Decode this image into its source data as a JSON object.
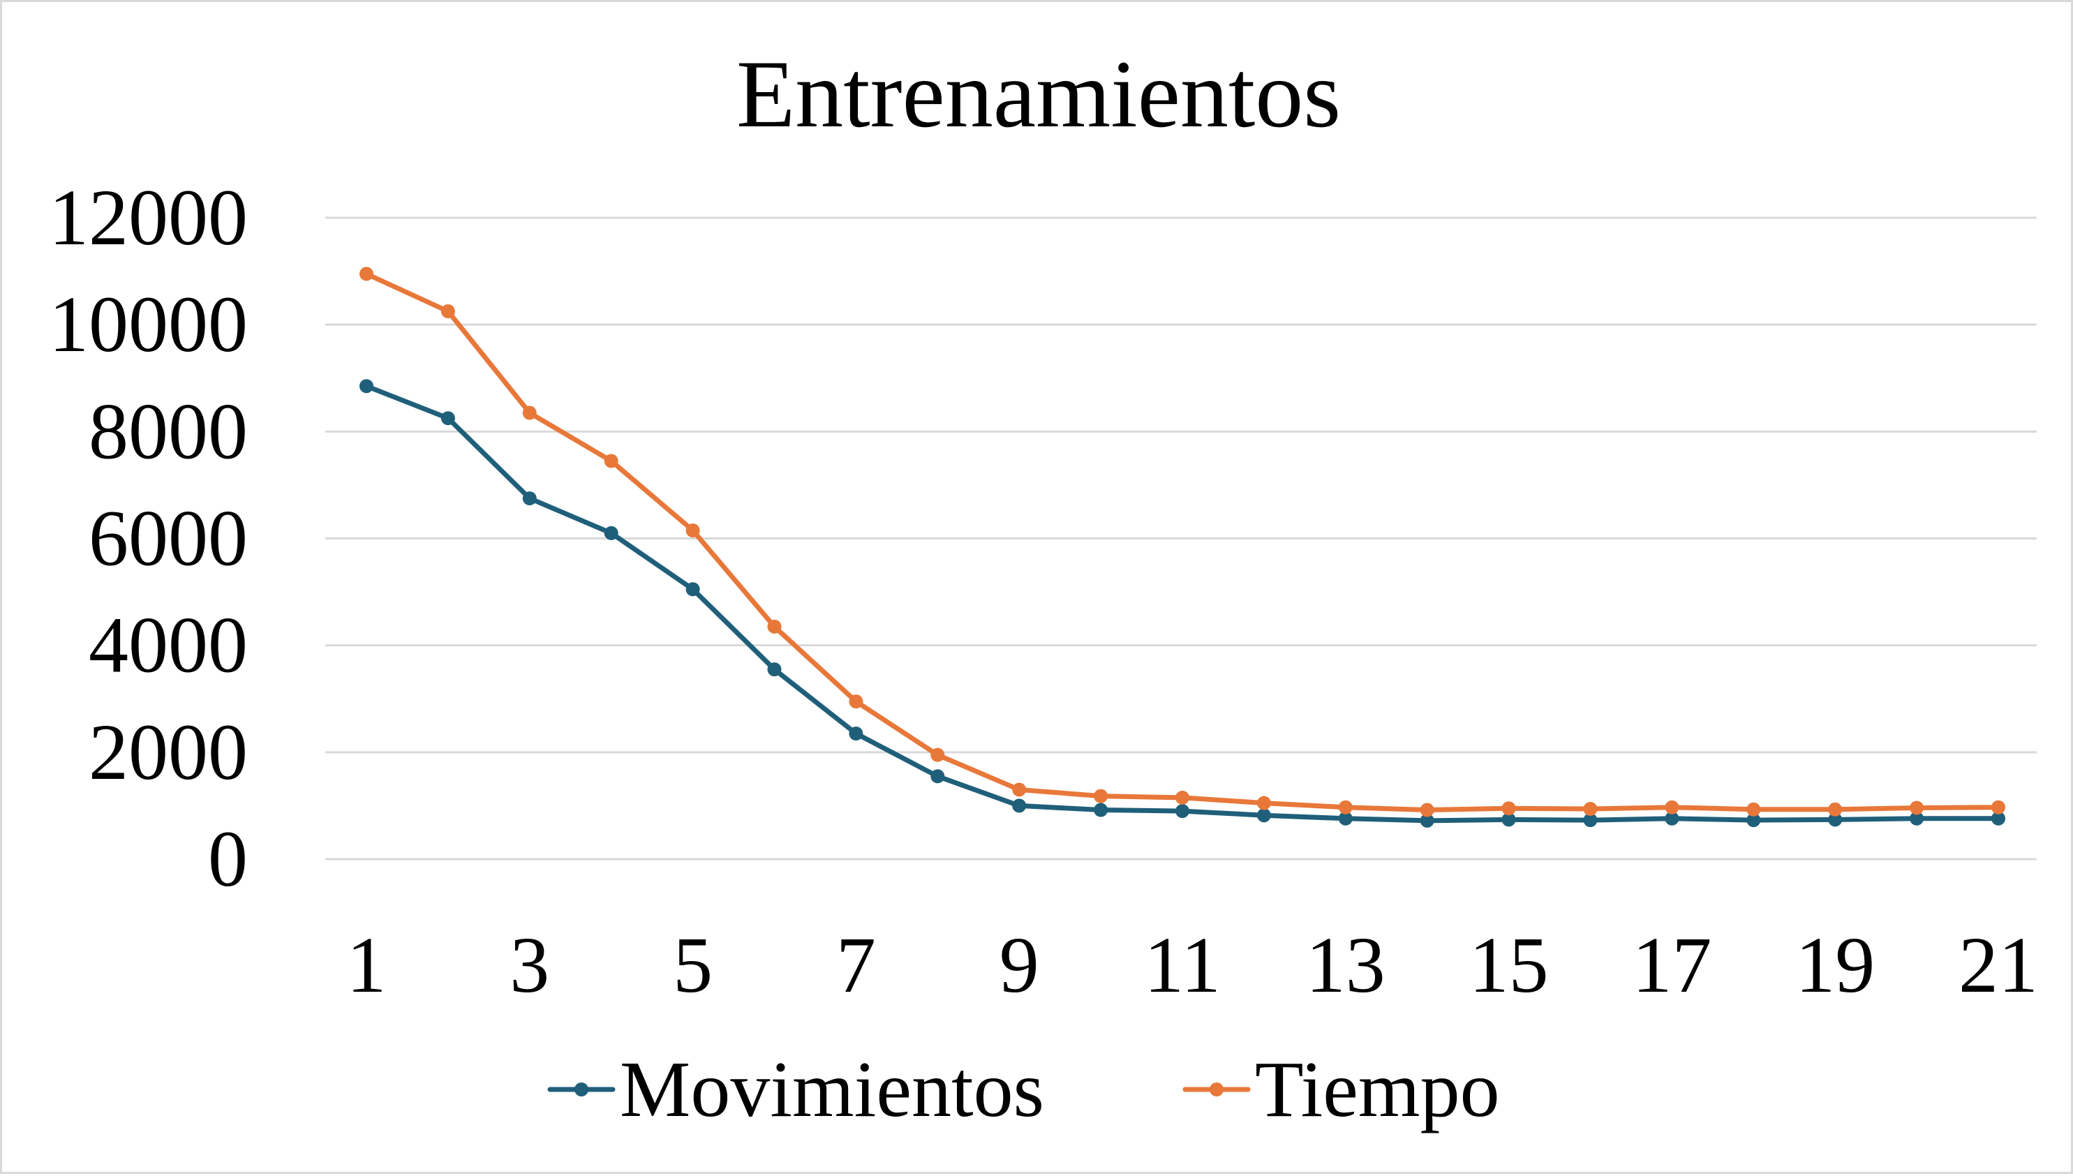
{
  "chart_data": {
    "type": "line",
    "title": "Entrenamientos",
    "xlabel": "",
    "ylabel": "",
    "x": [
      1,
      2,
      3,
      4,
      5,
      6,
      7,
      8,
      9,
      10,
      11,
      12,
      13,
      14,
      15,
      16,
      17,
      18,
      19,
      20,
      21
    ],
    "x_tick_labels": [
      "1",
      "3",
      "5",
      "7",
      "9",
      "11",
      "13",
      "15",
      "17",
      "19",
      "21"
    ],
    "ylim": [
      0,
      12000
    ],
    "y_ticks": [
      0,
      2000,
      4000,
      6000,
      8000,
      10000,
      12000
    ],
    "y_tick_labels": [
      "0",
      "2000",
      "4000",
      "6000",
      "8000",
      "10000",
      "12000"
    ],
    "grid": true,
    "legend_position": "bottom",
    "series": [
      {
        "name": "Movimientos",
        "color": "#1f5f7a",
        "values": [
          8850,
          8250,
          6750,
          6100,
          5050,
          3550,
          2350,
          1550,
          1000,
          920,
          900,
          820,
          760,
          720,
          740,
          730,
          760,
          730,
          740,
          760,
          760
        ]
      },
      {
        "name": "Tiempo",
        "color": "#e8783a",
        "values": [
          10950,
          10250,
          8350,
          7450,
          6150,
          4350,
          2950,
          1950,
          1300,
          1180,
          1150,
          1050,
          970,
          920,
          950,
          940,
          970,
          930,
          930,
          960,
          970
        ]
      }
    ]
  }
}
